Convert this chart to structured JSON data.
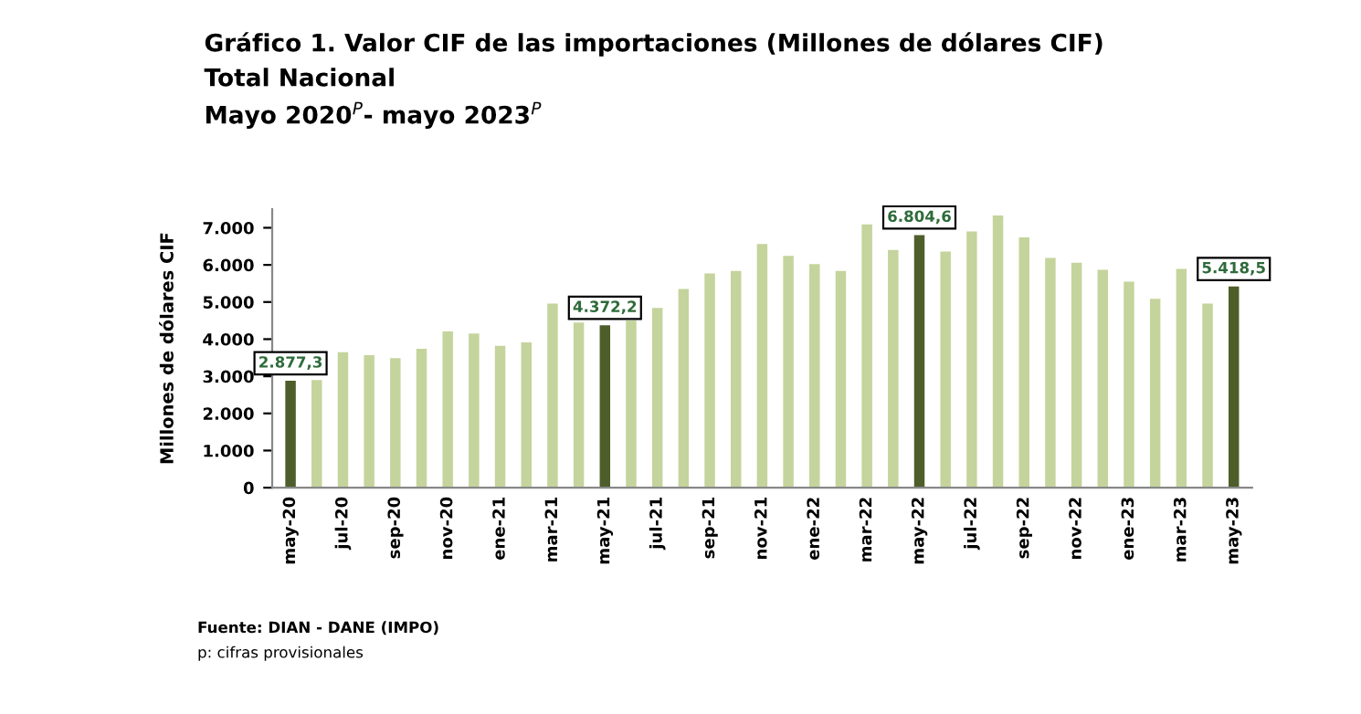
{
  "chart_data": {
    "type": "bar",
    "title": "Gráfico 1. Valor CIF de las importaciones (Millones de dólares CIF)",
    "subtitle": "Total Nacional\nMayo 2020$^{P}$- mayo 2023$^{P}$",
    "ylabel": "Millones de dólares CIF",
    "categories": [
      "may-20",
      null,
      "jul-20",
      null,
      "sep-20",
      null,
      "nov-20",
      null,
      "ene-21",
      null,
      "mar-21",
      null,
      "may-21",
      null,
      "jul-21",
      null,
      "sep-21",
      null,
      "nov-21",
      null,
      "ene-22",
      null,
      "mar-22",
      null,
      "may-22",
      null,
      "jul-22",
      null,
      "sep-22",
      null,
      "nov-22",
      null,
      "ene-23",
      null,
      "mar-23",
      null,
      "may-23"
    ],
    "values": [
      2877.3,
      2900,
      3650,
      3570,
      3490,
      3740,
      4210,
      4150,
      3820,
      3910,
      4960,
      4450,
      4372.2,
      4500,
      4840,
      5350,
      5770,
      5840,
      6560,
      6240,
      6020,
      5840,
      7090,
      6400,
      6804.6,
      6360,
      6900,
      7330,
      6740,
      6190,
      6060,
      5870,
      5550,
      5090,
      5890,
      4960,
      5418.5
    ],
    "colors": [
      "#4e5e2a",
      "#c4d49c",
      "#c4d49c",
      "#c4d49c",
      "#c4d49c",
      "#c4d49c",
      "#c4d49c",
      "#c4d49c",
      "#c4d49c",
      "#c4d49c",
      "#c4d49c",
      "#c4d49c",
      "#4e5e2a",
      "#c4d49c",
      "#c4d49c",
      "#c4d49c",
      "#c4d49c",
      "#c4d49c",
      "#c4d49c",
      "#c4d49c",
      "#c4d49c",
      "#c4d49c",
      "#c4d49c",
      "#c4d49c",
      "#4e5e2a",
      "#c4d49c",
      "#c4d49c",
      "#c4d49c",
      "#c4d49c",
      "#c4d49c",
      "#c4d49c",
      "#c4d49c",
      "#c4d49c",
      "#c4d49c",
      "#c4d49c",
      "#c4d49c",
      "#4e5e2a"
    ],
    "value_labels": [
      "2.877,3",
      null,
      null,
      null,
      null,
      null,
      null,
      null,
      null,
      null,
      null,
      null,
      "4.372,2",
      null,
      null,
      null,
      null,
      null,
      null,
      null,
      null,
      null,
      null,
      null,
      "6.804,6",
      null,
      null,
      null,
      null,
      null,
      null,
      null,
      null,
      null,
      null,
      null,
      "5.418,5"
    ],
    "ylim": [
      0,
      7500
    ],
    "yticks": [
      0,
      {
        "value": 1000,
        "label": "1.000"
      },
      {
        "value": 2000,
        "label": "2.000"
      },
      {
        "value": 3000,
        "label": "3.000"
      },
      {
        "value": 4000,
        "label": "4.000"
      },
      {
        "value": 5000,
        "label": "5.000"
      },
      {
        "value": 6000,
        "label": "6.000"
      },
      {
        "value": 7000,
        "label": "7.000"
      }
    ],
    "grid": false,
    "legend": false,
    "annotations": [
      "Fuente: DIAN - DANE (IMPO)",
      "p: cifras provisionales"
    ]
  }
}
